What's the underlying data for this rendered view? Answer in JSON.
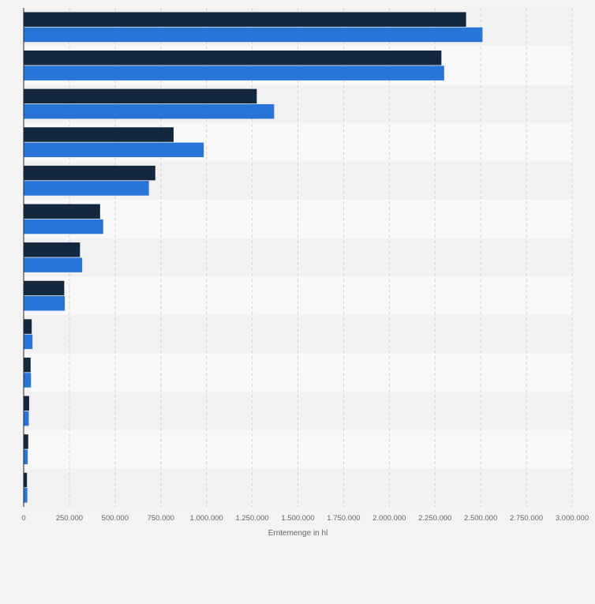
{
  "chart_data": {
    "type": "bar",
    "orientation": "horizontal",
    "categories": [
      "",
      "",
      "",
      "",
      "",
      "",
      "",
      "",
      "",
      "",
      "",
      "",
      ""
    ],
    "series": [
      {
        "values": [
          2420000,
          2285000,
          1275000,
          820000,
          720000,
          418000,
          308000,
          222000,
          44000,
          38000,
          30000,
          25000,
          18000
        ]
      },
      {
        "values": [
          2510000,
          2300000,
          1370000,
          985000,
          685000,
          435000,
          320000,
          225000,
          48000,
          40000,
          28000,
          22000,
          20000
        ]
      }
    ],
    "xlabel": "Erntemenge in hl",
    "ylabel": "",
    "xlim": [
      0,
      3000000
    ],
    "x_ticks": [
      0,
      250000,
      500000,
      750000,
      1000000,
      1250000,
      1500000,
      1750000,
      2000000,
      2250000,
      2500000,
      2750000,
      3000000
    ],
    "x_tick_labels": [
      "0",
      "250.000",
      "500.000",
      "750.000",
      "1.000.000",
      "1.250.000",
      "1.500.000",
      "1.750.000",
      "2.000.000",
      "2.250.000",
      "2.500.000",
      "2.750.000",
      "3.000.000"
    ],
    "grid": true,
    "colors": {
      "series": [
        "#13283f",
        "#2874d8"
      ],
      "band_light": "#f8f8f9",
      "band_dark": "#f1f1f2",
      "gridline": "#d3d3d6",
      "axis_text": "#666666"
    }
  }
}
